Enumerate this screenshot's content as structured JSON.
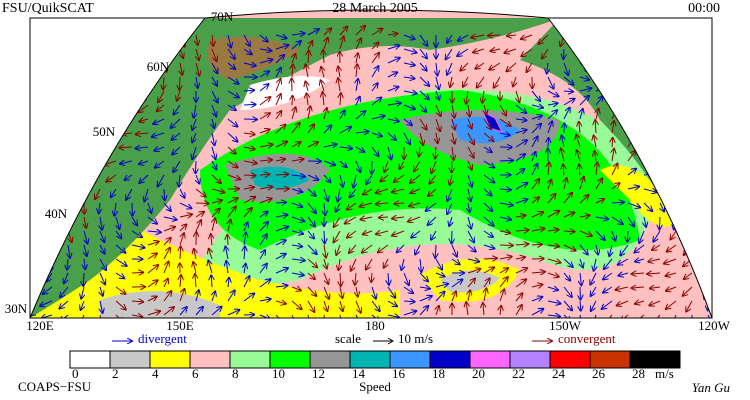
{
  "header": {
    "left": "FSU/QuikSCAT",
    "center": "28 March 2005",
    "right": "00:00"
  },
  "latitude_labels": [
    "70N",
    "60N",
    "50N",
    "40N",
    "30N"
  ],
  "longitude_labels": [
    "120E",
    "150E",
    "180",
    "150W",
    "120W"
  ],
  "legend": {
    "divergent": "divergent",
    "scale": "scale",
    "scale_value": "10 m/s",
    "convergent": "convergent"
  },
  "colorbar": {
    "ticks": [
      0,
      2,
      4,
      6,
      8,
      10,
      12,
      14,
      16,
      18,
      20,
      22,
      24,
      26,
      28
    ],
    "colors": [
      "#ffffff",
      "#c8c8c8",
      "#ffff00",
      "#ffc0c0",
      "#98fb98",
      "#00ff00",
      "#969696",
      "#00b4b4",
      "#3c96ff",
      "#0000c8",
      "#ff66ff",
      "#b482ff",
      "#ff0000",
      "#c83200",
      "#000000"
    ],
    "unit": "m/s",
    "label": "Speed"
  },
  "footer": {
    "left": "COAPS−FSU",
    "right": "Yan Gu"
  }
}
